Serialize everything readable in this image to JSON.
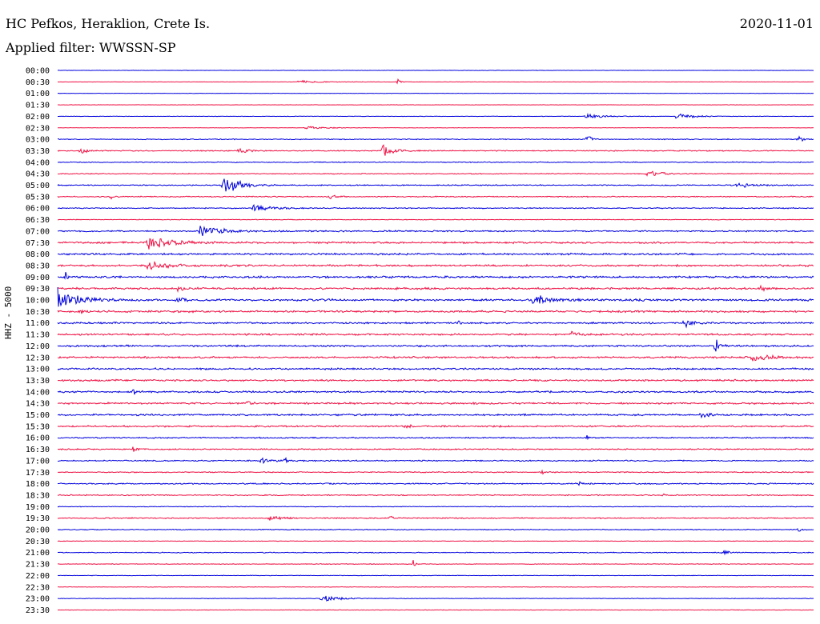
{
  "header": {
    "station": "HC Pefkos, Heraklion, Crete Is.",
    "filter": "Applied filter: WWSSN-SP",
    "date": "2020-11-01",
    "channel": "HHZ - 5000"
  },
  "chart_data": {
    "type": "line",
    "title": "",
    "ylabel": "HHZ - 5000",
    "row_interval_minutes": 30,
    "time_labels": [
      "00:00",
      "00:30",
      "01:00",
      "01:30",
      "02:00",
      "02:30",
      "03:00",
      "03:30",
      "04:00",
      "04:30",
      "05:00",
      "05:30",
      "06:00",
      "06:30",
      "07:00",
      "07:30",
      "08:00",
      "08:30",
      "09:00",
      "09:30",
      "10:00",
      "10:30",
      "11:00",
      "11:30",
      "12:00",
      "12:30",
      "13:00",
      "13:30",
      "14:00",
      "14:30",
      "15:00",
      "15:30",
      "16:00",
      "16:30",
      "17:00",
      "17:30",
      "18:00",
      "18:30",
      "19:00",
      "19:30",
      "20:00",
      "20:30",
      "21:00",
      "21:30",
      "22:00",
      "22:30",
      "23:00",
      "23:30"
    ],
    "colors": [
      "#0000dd",
      "#ee1144"
    ],
    "noise_level": [
      0.2,
      0.2,
      0.2,
      0.2,
      0.25,
      0.2,
      0.5,
      0.6,
      0.5,
      0.5,
      0.6,
      0.6,
      0.6,
      0.4,
      0.8,
      1.0,
      1.0,
      1.0,
      1.1,
      1.1,
      1.2,
      1.1,
      1.0,
      1.0,
      1.0,
      1.0,
      1.0,
      1.0,
      1.0,
      1.0,
      1.0,
      0.9,
      0.7,
      0.7,
      0.7,
      0.6,
      0.7,
      0.6,
      0.4,
      0.6,
      0.5,
      0.3,
      0.5,
      0.4,
      0.3,
      0.3,
      0.3,
      0.3
    ],
    "events": [
      {
        "row": 1,
        "x": 0.32,
        "amp": 2,
        "dur": 0.05
      },
      {
        "row": 1,
        "x": 0.45,
        "amp": 6,
        "dur": 0.008
      },
      {
        "row": 4,
        "x": 0.7,
        "amp": 3,
        "dur": 0.05
      },
      {
        "row": 4,
        "x": 0.82,
        "amp": 3,
        "dur": 0.05
      },
      {
        "row": 5,
        "x": 0.33,
        "amp": 2,
        "dur": 0.06
      },
      {
        "row": 6,
        "x": 0.7,
        "amp": 12,
        "dur": 0.008
      },
      {
        "row": 6,
        "x": 0.98,
        "amp": 5,
        "dur": 0.01
      },
      {
        "row": 7,
        "x": 0.03,
        "amp": 4,
        "dur": 0.02
      },
      {
        "row": 7,
        "x": 0.24,
        "amp": 5,
        "dur": 0.02
      },
      {
        "row": 7,
        "x": 0.43,
        "amp": 9,
        "dur": 0.03
      },
      {
        "row": 9,
        "x": 0.78,
        "amp": 4,
        "dur": 0.04
      },
      {
        "row": 10,
        "x": 0.22,
        "amp": 14,
        "dur": 0.04
      },
      {
        "row": 10,
        "x": 0.9,
        "amp": 3,
        "dur": 0.05
      },
      {
        "row": 11,
        "x": 0.07,
        "amp": 3,
        "dur": 0.01
      },
      {
        "row": 11,
        "x": 0.36,
        "amp": 3,
        "dur": 0.02
      },
      {
        "row": 12,
        "x": 0.26,
        "amp": 4,
        "dur": 0.05
      },
      {
        "row": 14,
        "x": 0.19,
        "amp": 9,
        "dur": 0.05
      },
      {
        "row": 15,
        "x": 0.12,
        "amp": 9,
        "dur": 0.06
      },
      {
        "row": 17,
        "x": 0.12,
        "amp": 6,
        "dur": 0.05
      },
      {
        "row": 18,
        "x": 0.01,
        "amp": 12,
        "dur": 0.005
      },
      {
        "row": 19,
        "x": 0.16,
        "amp": 4,
        "dur": 0.02
      },
      {
        "row": 19,
        "x": 0.93,
        "amp": 5,
        "dur": 0.01
      },
      {
        "row": 20,
        "x": 0.0,
        "amp": 14,
        "dur": 0.05
      },
      {
        "row": 20,
        "x": 0.16,
        "amp": 5,
        "dur": 0.01
      },
      {
        "row": 20,
        "x": 0.63,
        "amp": 6,
        "dur": 0.05
      },
      {
        "row": 21,
        "x": 0.03,
        "amp": 4,
        "dur": 0.01
      },
      {
        "row": 22,
        "x": 0.53,
        "amp": 6,
        "dur": 0.005
      },
      {
        "row": 22,
        "x": 0.83,
        "amp": 5,
        "dur": 0.02
      },
      {
        "row": 23,
        "x": 0.68,
        "amp": 4,
        "dur": 0.02
      },
      {
        "row": 24,
        "x": 0.87,
        "amp": 10,
        "dur": 0.01
      },
      {
        "row": 25,
        "x": 0.92,
        "amp": 5,
        "dur": 0.04
      },
      {
        "row": 28,
        "x": 0.1,
        "amp": 5,
        "dur": 0.01
      },
      {
        "row": 29,
        "x": 0.25,
        "amp": 4,
        "dur": 0.01
      },
      {
        "row": 30,
        "x": 0.85,
        "amp": 4,
        "dur": 0.02
      },
      {
        "row": 31,
        "x": 0.46,
        "amp": 4,
        "dur": 0.01
      },
      {
        "row": 32,
        "x": 0.7,
        "amp": 3,
        "dur": 0.005
      },
      {
        "row": 33,
        "x": 0.1,
        "amp": 4,
        "dur": 0.01
      },
      {
        "row": 34,
        "x": 0.27,
        "amp": 4,
        "dur": 0.02
      },
      {
        "row": 34,
        "x": 0.3,
        "amp": 4,
        "dur": 0.01
      },
      {
        "row": 35,
        "x": 0.64,
        "amp": 4,
        "dur": 0.01
      },
      {
        "row": 36,
        "x": 0.69,
        "amp": 4,
        "dur": 0.01
      },
      {
        "row": 37,
        "x": 0.8,
        "amp": 3,
        "dur": 0.005
      },
      {
        "row": 39,
        "x": 0.28,
        "amp": 3,
        "dur": 0.04
      },
      {
        "row": 39,
        "x": 0.44,
        "amp": 3,
        "dur": 0.01
      },
      {
        "row": 40,
        "x": 0.98,
        "amp": 5,
        "dur": 0.005
      },
      {
        "row": 42,
        "x": 0.88,
        "amp": 3,
        "dur": 0.02
      },
      {
        "row": 43,
        "x": 0.47,
        "amp": 8,
        "dur": 0.005
      },
      {
        "row": 46,
        "x": 0.35,
        "amp": 4,
        "dur": 0.06
      }
    ]
  }
}
